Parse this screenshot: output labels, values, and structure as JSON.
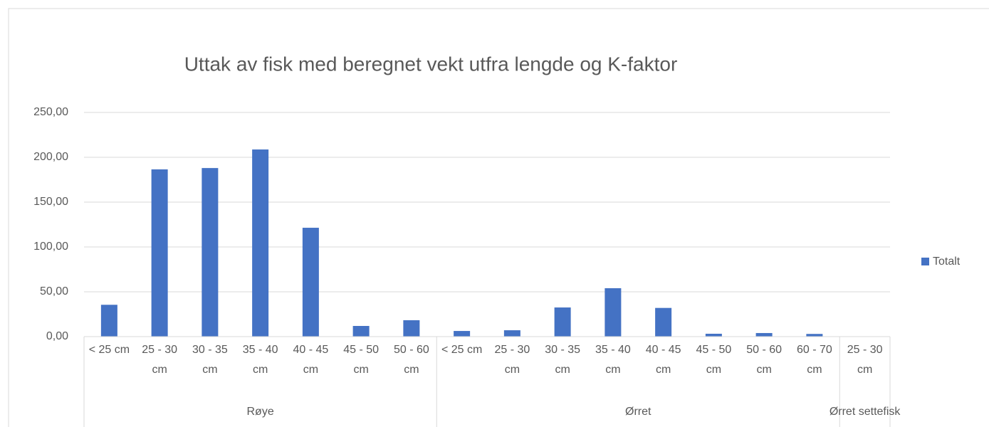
{
  "chart_data": {
    "type": "bar",
    "title": "Uttak av fisk med beregnet vekt utfra lengde og K-faktor",
    "groups": [
      {
        "name": "Røye",
        "categories": [
          "< 25 cm",
          "25 - 30 cm",
          "30 - 35 cm",
          "35 - 40 cm",
          "40 - 45 cm",
          "45 - 50 cm",
          "50 - 60 cm"
        ]
      },
      {
        "name": "Ørret",
        "categories": [
          "< 25 cm",
          "25 - 30 cm",
          "30 - 35 cm",
          "35 - 40 cm",
          "40 - 45 cm",
          "45 - 50 cm",
          "50 - 60 cm",
          "60 - 70 cm"
        ]
      },
      {
        "name": "Ørret settefisk",
        "categories": [
          "25 - 30 cm"
        ]
      }
    ],
    "series": [
      {
        "name": "Totalt",
        "color": "#4472c4",
        "values": [
          35.5,
          186.5,
          188,
          208.7,
          121.4,
          11.9,
          18.3,
          6.3,
          7.1,
          32.5,
          54,
          32,
          3.2,
          4,
          3,
          0.3
        ]
      }
    ],
    "ylim": [
      0,
      250
    ],
    "yticks": [
      {
        "value": 0,
        "label": "0,00"
      },
      {
        "value": 50,
        "label": "50,00"
      },
      {
        "value": 100,
        "label": "100,00"
      },
      {
        "value": 150,
        "label": "150,00"
      },
      {
        "value": 200,
        "label": "200,00"
      },
      {
        "value": 250,
        "label": "250,00"
      }
    ],
    "grid": true,
    "legend": "right"
  }
}
